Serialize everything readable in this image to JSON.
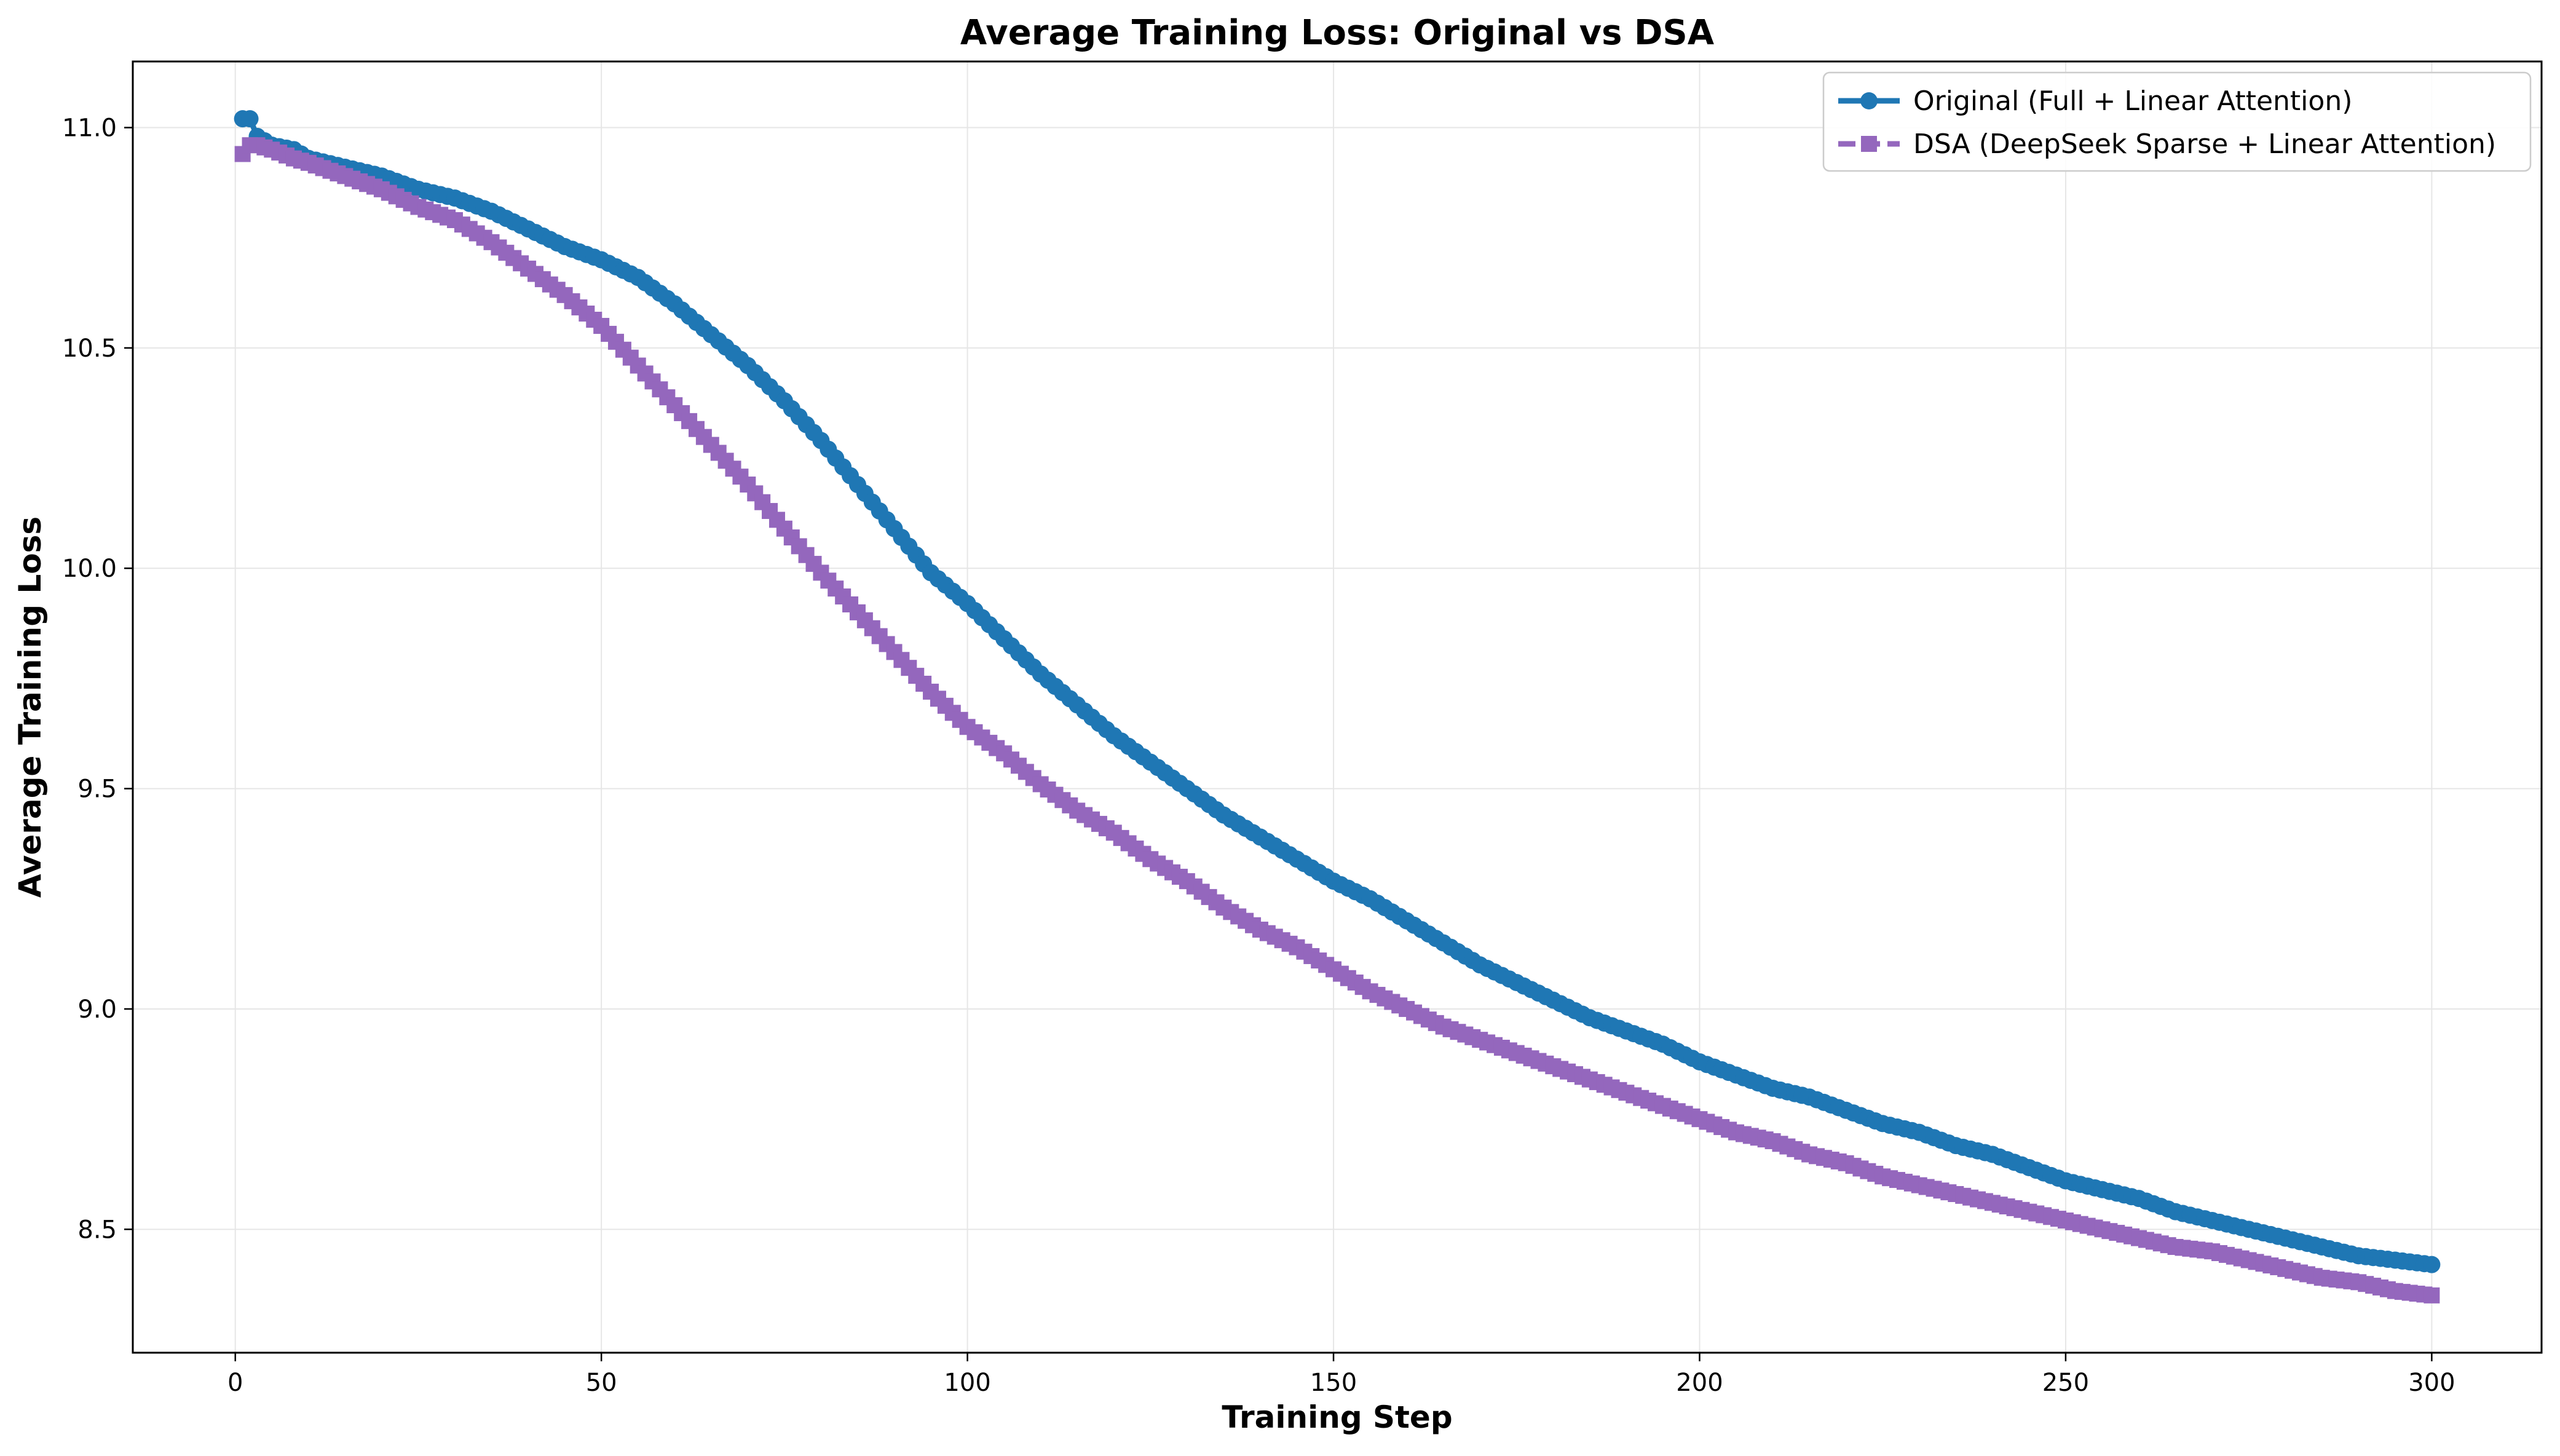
{
  "chart_data": {
    "type": "line",
    "title": "Average Training Loss: Original vs DSA",
    "xlabel": "Training Step",
    "ylabel": "Average Training Loss",
    "xlim": [
      -14,
      315
    ],
    "ylim": [
      8.22,
      11.15
    ],
    "xticks": [
      0,
      50,
      100,
      150,
      200,
      250,
      300
    ],
    "yticks": [
      8.5,
      9.0,
      9.5,
      10.0,
      10.5,
      11.0
    ],
    "xtick_labels": [
      "0",
      "50",
      "100",
      "150",
      "200",
      "250",
      "300"
    ],
    "ytick_labels": [
      "8.5",
      "9.0",
      "9.5",
      "10.0",
      "10.5",
      "11.0"
    ],
    "grid": true,
    "legend_position": "top-right",
    "series": [
      {
        "name": "Original (Full + Linear Attention)",
        "color": "#1f77b4",
        "marker": "circle",
        "line_style": "solid",
        "x": [
          1,
          2,
          3,
          5,
          8,
          10,
          15,
          20,
          25,
          30,
          35,
          40,
          45,
          50,
          55,
          60,
          65,
          70,
          75,
          80,
          85,
          90,
          95,
          100,
          105,
          110,
          115,
          120,
          125,
          130,
          135,
          140,
          145,
          150,
          155,
          160,
          165,
          170,
          175,
          180,
          185,
          190,
          195,
          200,
          205,
          210,
          215,
          220,
          225,
          230,
          235,
          240,
          245,
          250,
          255,
          260,
          265,
          270,
          275,
          280,
          285,
          290,
          295,
          300
        ],
        "y": [
          11.02,
          11.02,
          10.98,
          10.96,
          10.95,
          10.93,
          10.91,
          10.89,
          10.86,
          10.84,
          10.81,
          10.77,
          10.73,
          10.7,
          10.66,
          10.6,
          10.53,
          10.46,
          10.38,
          10.29,
          10.19,
          10.09,
          9.99,
          9.92,
          9.84,
          9.76,
          9.69,
          9.62,
          9.56,
          9.5,
          9.44,
          9.39,
          9.34,
          9.29,
          9.25,
          9.2,
          9.15,
          9.1,
          9.06,
          9.02,
          8.98,
          8.95,
          8.92,
          8.88,
          8.85,
          8.82,
          8.8,
          8.77,
          8.74,
          8.72,
          8.69,
          8.67,
          8.64,
          8.61,
          8.59,
          8.57,
          8.54,
          8.52,
          8.5,
          8.48,
          8.46,
          8.44,
          8.43,
          8.42
        ]
      },
      {
        "name": "DSA (DeepSeek Sparse + Linear Attention)",
        "color": "#9467bd",
        "marker": "square",
        "line_style": "dashed",
        "x": [
          1,
          2,
          3,
          5,
          8,
          10,
          15,
          20,
          25,
          30,
          35,
          40,
          45,
          50,
          55,
          60,
          65,
          70,
          75,
          80,
          85,
          90,
          95,
          100,
          105,
          110,
          115,
          120,
          125,
          130,
          135,
          140,
          145,
          150,
          155,
          160,
          165,
          170,
          175,
          180,
          185,
          190,
          195,
          200,
          205,
          210,
          215,
          220,
          225,
          230,
          235,
          240,
          245,
          250,
          255,
          260,
          265,
          270,
          275,
          280,
          285,
          290,
          295,
          300
        ],
        "y": [
          10.94,
          10.96,
          10.96,
          10.95,
          10.93,
          10.92,
          10.89,
          10.86,
          10.82,
          10.79,
          10.74,
          10.68,
          10.62,
          10.55,
          10.46,
          10.37,
          10.28,
          10.19,
          10.09,
          9.99,
          9.9,
          9.81,
          9.72,
          9.64,
          9.58,
          9.51,
          9.45,
          9.4,
          9.34,
          9.29,
          9.23,
          9.18,
          9.14,
          9.09,
          9.04,
          9.0,
          8.96,
          8.93,
          8.9,
          8.87,
          8.84,
          8.81,
          8.78,
          8.75,
          8.72,
          8.7,
          8.67,
          8.65,
          8.62,
          8.6,
          8.58,
          8.56,
          8.54,
          8.52,
          8.5,
          8.48,
          8.46,
          8.45,
          8.43,
          8.41,
          8.39,
          8.38,
          8.36,
          8.35
        ]
      }
    ]
  }
}
